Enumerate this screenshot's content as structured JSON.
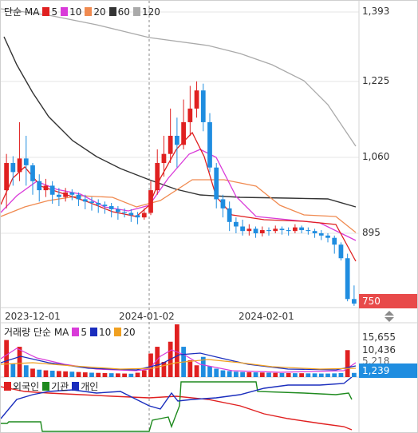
{
  "price_legend": {
    "label": "단순 MA",
    "items": [
      {
        "value": "5",
        "color": "#e02020"
      },
      {
        "value": "10",
        "color": "#d93bd9"
      },
      {
        "value": "20",
        "color": "#f08a50"
      },
      {
        "value": "60",
        "color": "#333333"
      },
      {
        "value": "120",
        "color": "#aaaaaa"
      }
    ]
  },
  "price_axis": [
    "1,393",
    "1,225",
    "1,060",
    "895"
  ],
  "price_tag": {
    "value": "750",
    "color": "#e84a4a"
  },
  "date_axis": [
    "2023-12-01",
    "2024-01-02",
    "2024-02-01"
  ],
  "volume_legend": {
    "label": "거래량 단순 MA",
    "items": [
      {
        "value": "5",
        "color": "#d93bd9"
      },
      {
        "value": "10",
        "color": "#1a2dbd"
      },
      {
        "value": "20",
        "color": "#f0a020"
      }
    ]
  },
  "volume_axis": [
    "15,655",
    "10,436",
    "5,218"
  ],
  "volume_tag": {
    "value": "1,239",
    "color": "#1f8de0"
  },
  "investor_legend": {
    "items": [
      {
        "label": "외국인",
        "color": "#e02020"
      },
      {
        "label": "기관",
        "color": "#1e8a1e"
      },
      {
        "label": "개인",
        "color": "#1a2dbd"
      }
    ]
  },
  "chart_data": {
    "type": "candlestick",
    "price_range": [
      750,
      1393
    ],
    "candles": [
      [
        1000,
        1060,
        960,
        1080
      ],
      [
        1060,
        1040,
        1010,
        1075
      ],
      [
        1040,
        1070,
        1020,
        1150
      ],
      [
        1070,
        1055,
        1010,
        1120
      ],
      [
        1055,
        1020,
        990,
        1060
      ],
      [
        1020,
        1000,
        975,
        1035
      ],
      [
        1000,
        1010,
        985,
        1025
      ],
      [
        1010,
        990,
        970,
        1020
      ],
      [
        990,
        985,
        965,
        1005
      ],
      [
        985,
        995,
        975,
        1005
      ],
      [
        995,
        990,
        978,
        1002
      ],
      [
        990,
        980,
        965,
        995
      ],
      [
        980,
        975,
        958,
        990
      ],
      [
        975,
        972,
        955,
        985
      ],
      [
        972,
        968,
        950,
        980
      ],
      [
        968,
        965,
        948,
        975
      ],
      [
        965,
        958,
        940,
        972
      ],
      [
        958,
        952,
        935,
        965
      ],
      [
        952,
        950,
        940,
        960
      ],
      [
        950,
        945,
        930,
        958
      ],
      [
        945,
        940,
        925,
        952
      ],
      [
        940,
        950,
        935,
        960
      ],
      [
        950,
        1000,
        945,
        1020
      ],
      [
        1000,
        1060,
        990,
        1090
      ],
      [
        1060,
        1080,
        1030,
        1120
      ],
      [
        1080,
        1120,
        1060,
        1180
      ],
      [
        1120,
        1100,
        1050,
        1160
      ],
      [
        1100,
        1150,
        1090,
        1200
      ],
      [
        1150,
        1180,
        1120,
        1230
      ],
      [
        1180,
        1220,
        1160,
        1240
      ],
      [
        1220,
        1150,
        1130,
        1235
      ],
      [
        1150,
        1050,
        1040,
        1170
      ],
      [
        1050,
        980,
        960,
        1060
      ],
      [
        980,
        960,
        940,
        990
      ],
      [
        960,
        930,
        910,
        975
      ],
      [
        930,
        920,
        905,
        940
      ],
      [
        920,
        910,
        900,
        935
      ],
      [
        910,
        915,
        900,
        925
      ],
      [
        915,
        905,
        895,
        920
      ],
      [
        905,
        912,
        898,
        920
      ],
      [
        912,
        910,
        900,
        918
      ],
      [
        910,
        915,
        905,
        922
      ],
      [
        915,
        912,
        902,
        920
      ],
      [
        912,
        910,
        900,
        918
      ],
      [
        910,
        918,
        905,
        925
      ],
      [
        918,
        912,
        905,
        922
      ],
      [
        912,
        910,
        902,
        918
      ],
      [
        910,
        905,
        895,
        915
      ],
      [
        905,
        900,
        890,
        912
      ],
      [
        900,
        895,
        885,
        905
      ],
      [
        895,
        880,
        860,
        900
      ],
      [
        880,
        850,
        845,
        885
      ],
      [
        850,
        760,
        755,
        860
      ],
      [
        760,
        750,
        745,
        790
      ]
    ],
    "volume_range": [
      0,
      15655
    ],
    "volumes": [
      [
        11000,
        "up"
      ],
      [
        4000,
        "down"
      ],
      [
        9000,
        "up"
      ],
      [
        3500,
        "down"
      ],
      [
        2500,
        "up"
      ],
      [
        2200,
        "down"
      ],
      [
        2000,
        "up"
      ],
      [
        1900,
        "down"
      ],
      [
        1800,
        "up"
      ],
      [
        1700,
        "up"
      ],
      [
        1600,
        "down"
      ],
      [
        1500,
        "up"
      ],
      [
        1400,
        "up"
      ],
      [
        1300,
        "down"
      ],
      [
        1250,
        "up"
      ],
      [
        1200,
        "up"
      ],
      [
        1150,
        "down"
      ],
      [
        1100,
        "up"
      ],
      [
        1050,
        "up"
      ],
      [
        1000,
        "down"
      ],
      [
        1300,
        "up"
      ],
      [
        2000,
        "up"
      ],
      [
        7000,
        "up"
      ],
      [
        9000,
        "up"
      ],
      [
        4500,
        "up"
      ],
      [
        10500,
        "up"
      ],
      [
        16000,
        "up"
      ],
      [
        9000,
        "down"
      ],
      [
        5000,
        "up"
      ],
      [
        3500,
        "up"
      ],
      [
        6000,
        "down"
      ],
      [
        3200,
        "down"
      ],
      [
        2500,
        "down"
      ],
      [
        2000,
        "down"
      ],
      [
        1800,
        "down"
      ],
      [
        1600,
        "down"
      ],
      [
        1500,
        "down"
      ],
      [
        1450,
        "up"
      ],
      [
        1400,
        "down"
      ],
      [
        1350,
        "up"
      ],
      [
        1300,
        "down"
      ],
      [
        1250,
        "up"
      ],
      [
        1200,
        "down"
      ],
      [
        1200,
        "up"
      ],
      [
        1150,
        "down"
      ],
      [
        1150,
        "up"
      ],
      [
        1100,
        "down"
      ],
      [
        1100,
        "down"
      ],
      [
        1050,
        "down"
      ],
      [
        1050,
        "down"
      ],
      [
        1100,
        "down"
      ],
      [
        1200,
        "down"
      ],
      [
        8000,
        "up"
      ],
      [
        1239,
        "down"
      ]
    ]
  }
}
